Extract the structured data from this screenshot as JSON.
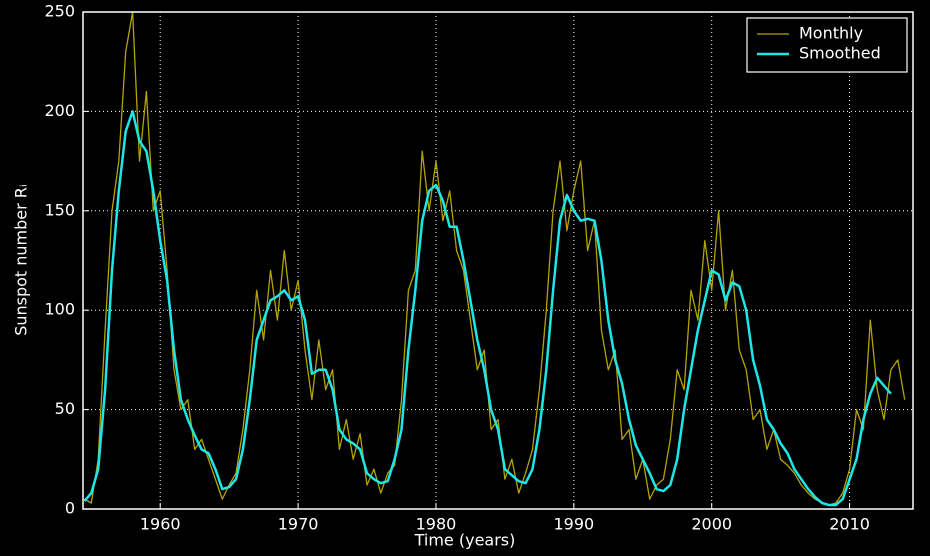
{
  "chart_data": {
    "type": "line",
    "xlabel": "Time (years)",
    "ylabel": "Sunspot number Rᵢ",
    "x": [
      1954.5,
      1955,
      1955.5,
      1956,
      1956.5,
      1957,
      1957.5,
      1958,
      1958.5,
      1959,
      1959.5,
      1960,
      1960.5,
      1961,
      1961.5,
      1962,
      1962.5,
      1963,
      1963.5,
      1964,
      1964.5,
      1965,
      1965.5,
      1966,
      1966.5,
      1967,
      1967.5,
      1968,
      1968.5,
      1969,
      1969.5,
      1970,
      1970.5,
      1971,
      1971.5,
      1972,
      1972.5,
      1973,
      1973.5,
      1974,
      1974.5,
      1975,
      1975.5,
      1976,
      1976.5,
      1977,
      1977.5,
      1978,
      1978.5,
      1979,
      1979.5,
      1980,
      1980.5,
      1981,
      1981.5,
      1982,
      1982.5,
      1983,
      1983.5,
      1984,
      1984.5,
      1985,
      1985.5,
      1986,
      1986.5,
      1987,
      1987.5,
      1988,
      1988.5,
      1989,
      1989.5,
      1990,
      1990.5,
      1991,
      1991.5,
      1992,
      1992.5,
      1993,
      1993.5,
      1994,
      1994.5,
      1995,
      1995.5,
      1996,
      1996.5,
      1997,
      1997.5,
      1998,
      1998.5,
      1999,
      1999.5,
      2000,
      2000.5,
      2001,
      2001.5,
      2002,
      2002.5,
      2003,
      2003.5,
      2004,
      2004.5,
      2005,
      2005.5,
      2006,
      2006.5,
      2007,
      2007.5,
      2008,
      2008.5,
      2009,
      2009.5,
      2010,
      2010.5,
      2011,
      2011.5,
      2012,
      2012.5,
      2013,
      2013.5,
      2014
    ],
    "series": [
      {
        "name": "Monthly",
        "color": "#b5a400",
        "width": 1.3,
        "values": [
          5,
          3,
          25,
          90,
          150,
          175,
          230,
          250,
          175,
          210,
          150,
          160,
          120,
          70,
          50,
          55,
          30,
          35,
          25,
          15,
          5,
          12,
          18,
          40,
          70,
          110,
          85,
          120,
          95,
          130,
          100,
          115,
          80,
          55,
          85,
          60,
          70,
          30,
          45,
          25,
          38,
          12,
          20,
          8,
          18,
          22,
          55,
          110,
          120,
          180,
          150,
          175,
          145,
          160,
          130,
          120,
          95,
          70,
          80,
          40,
          45,
          15,
          25,
          8,
          18,
          30,
          60,
          100,
          150,
          175,
          140,
          160,
          175,
          130,
          145,
          90,
          70,
          80,
          35,
          40,
          15,
          25,
          5,
          12,
          15,
          35,
          70,
          60,
          110,
          95,
          135,
          110,
          150,
          100,
          120,
          80,
          70,
          45,
          50,
          30,
          40,
          25,
          22,
          18,
          12,
          8,
          5,
          3,
          2,
          3,
          8,
          20,
          50,
          40,
          95,
          60,
          45,
          70,
          75,
          55
        ]
      },
      {
        "name": "Smoothed",
        "color": "#1ee6e6",
        "width": 2.5,
        "values": [
          4,
          8,
          20,
          60,
          120,
          160,
          190,
          200,
          185,
          180,
          160,
          135,
          115,
          80,
          55,
          45,
          37,
          30,
          28,
          20,
          10,
          11,
          15,
          30,
          55,
          85,
          95,
          105,
          107,
          110,
          105,
          107,
          95,
          68,
          70,
          70,
          60,
          40,
          35,
          33,
          30,
          18,
          15,
          13,
          14,
          25,
          40,
          80,
          110,
          145,
          160,
          163,
          155,
          142,
          142,
          125,
          105,
          85,
          70,
          50,
          40,
          20,
          17,
          14,
          13,
          20,
          40,
          70,
          110,
          145,
          158,
          150,
          145,
          146,
          145,
          125,
          95,
          75,
          63,
          45,
          32,
          25,
          18,
          10,
          9,
          12,
          25,
          50,
          70,
          90,
          105,
          120,
          118,
          105,
          114,
          112,
          100,
          75,
          62,
          45,
          40,
          33,
          28,
          20,
          15,
          10,
          6,
          3,
          2,
          2,
          5,
          15,
          25,
          45,
          58,
          66,
          62,
          58,
          null,
          null
        ]
      }
    ],
    "xlim": [
      1954.4,
      2014.6
    ],
    "xticks": [
      1960,
      1970,
      1980,
      1990,
      2000,
      2010
    ],
    "ylim": [
      0,
      250
    ],
    "yticks": [
      0,
      50,
      100,
      150,
      200,
      250
    ],
    "grid": true,
    "legend": "upper right"
  }
}
